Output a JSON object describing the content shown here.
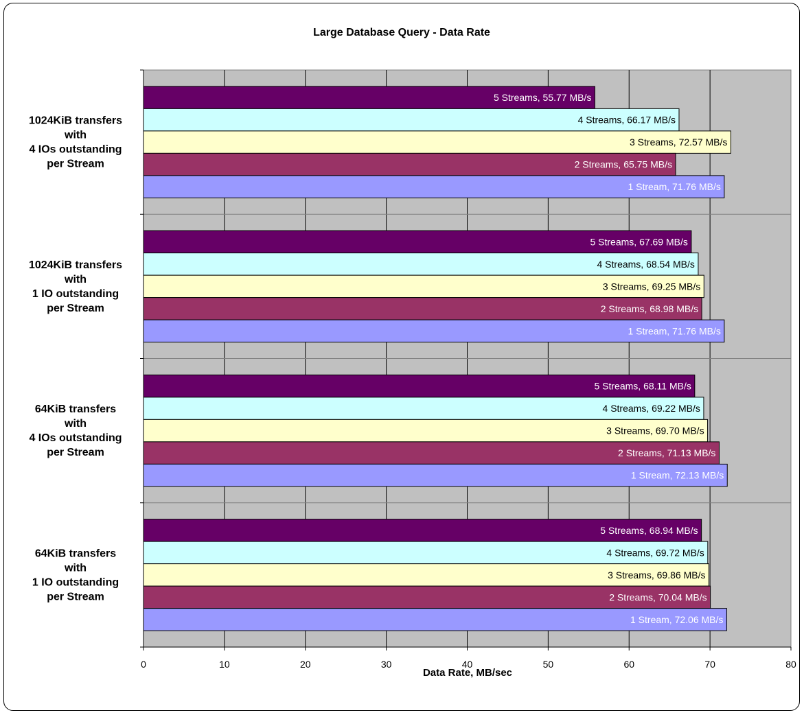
{
  "chart_data": {
    "type": "bar",
    "orientation": "horizontal",
    "title": "Large Database Query - Data Rate",
    "xlabel": "Data Rate, MB/sec",
    "ylabel": "",
    "xlim": [
      0,
      80
    ],
    "x_ticks": [
      0,
      10,
      20,
      30,
      40,
      50,
      60,
      70,
      80
    ],
    "grid": true,
    "legend": "none",
    "unit": "MB/s",
    "colors": {
      "plot_background": "#c0c0c0",
      "5 Streams": "#660066",
      "4 Streams": "#ccffff",
      "3 Streams": "#ffffcc",
      "2 Streams": "#993366",
      "1 Stream": "#9999ff"
    },
    "categories": [
      [
        "1024KiB transfers",
        "with",
        "4 IOs outstanding",
        "per Stream"
      ],
      [
        "1024KiB transfers",
        "with",
        "1 IO outstanding",
        "per Stream"
      ],
      [
        "64KiB transfers",
        "with",
        "4 IOs outstanding",
        "per Stream"
      ],
      [
        "64KiB transfers",
        "with",
        "1 IO outstanding",
        "per Stream"
      ]
    ],
    "series": [
      {
        "name": "5 Streams",
        "values": [
          55.77,
          67.69,
          68.11,
          68.94
        ]
      },
      {
        "name": "4 Streams",
        "values": [
          66.17,
          68.54,
          69.22,
          69.72
        ]
      },
      {
        "name": "3 Streams",
        "values": [
          72.57,
          69.25,
          69.7,
          69.86
        ]
      },
      {
        "name": "2 Streams",
        "values": [
          65.75,
          68.98,
          71.13,
          70.04
        ]
      },
      {
        "name": "1 Stream",
        "values": [
          71.76,
          71.76,
          72.13,
          72.06
        ]
      }
    ],
    "data_labels": [
      [
        "5 Streams, 55.77  MB/s",
        "4 Streams, 66.17  MB/s",
        "3 Streams, 72.57  MB/s",
        "2 Streams, 65.75  MB/s",
        "1 Stream, 71.76  MB/s"
      ],
      [
        "5 Streams, 67.69  MB/s",
        "4 Streams, 68.54  MB/s",
        "3 Streams, 69.25  MB/s",
        "2 Streams, 68.98  MB/s",
        "1 Stream, 71.76  MB/s"
      ],
      [
        "5 Streams, 68.11  MB/s",
        "4 Streams, 69.22  MB/s",
        "3 Streams, 69.70  MB/s",
        "2 Streams, 71.13  MB/s",
        "1 Stream, 72.13  MB/s"
      ],
      [
        "5 Streams, 68.94  MB/s",
        "4 Streams, 69.72  MB/s",
        "3 Streams, 69.86  MB/s",
        "2 Streams, 70.04  MB/s",
        "1 Stream, 72.06  MB/s"
      ]
    ],
    "label_colors": {
      "5 Streams": "#ffffff",
      "4 Streams": "#000000",
      "3 Streams": "#000000",
      "2 Streams": "#ffffff",
      "1 Stream": "#ffffff"
    }
  }
}
